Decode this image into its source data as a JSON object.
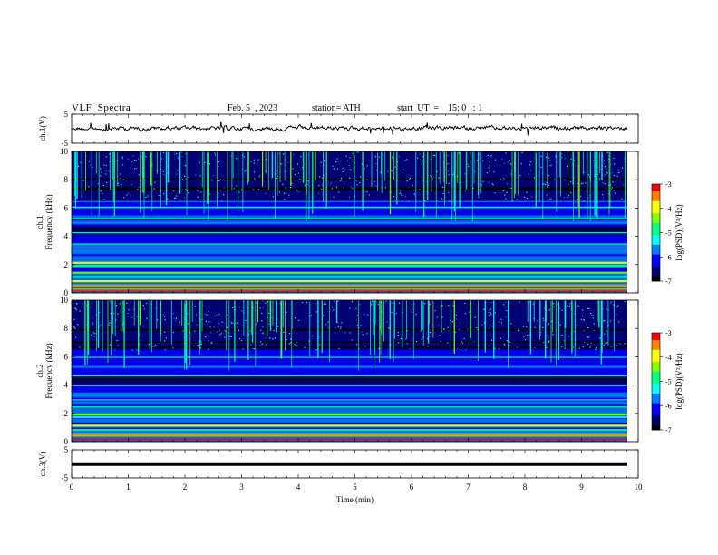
{
  "header": {
    "title": "VLF  Spectra",
    "date": "Feb. 5  , 2023",
    "station": "station= ATH",
    "start": "start  UT  =    15: 0   : 1"
  },
  "chart_data": [
    {
      "type": "line",
      "title": "",
      "ylabel": "ch.1(V)",
      "ylim": [
        -5,
        5
      ],
      "yticks": [
        "5",
        "-5"
      ],
      "xlim": [
        0,
        10
      ],
      "series": [
        {
          "name": "",
          "values": "noisy trace centred near 0 V, roughly -1.5 to 1 V, with brief spikes"
        }
      ]
    },
    {
      "type": "heatmap",
      "title": "",
      "ylabel": "ch.1\nFrequency  (kHz)",
      "ylim": [
        0,
        10
      ],
      "yticks": [
        "0",
        "2",
        "4",
        "6",
        "8",
        "10"
      ],
      "xlim": [
        0,
        10
      ],
      "colorbar": {
        "label": "log(PSD)(V²/Hz)",
        "range": [
          -7,
          -3
        ],
        "ticks": [
          "-3",
          "-4",
          "-5",
          "-6",
          "-7"
        ]
      },
      "bands_khz": [
        0.3,
        0.6,
        0.9,
        1.2,
        1.5,
        2.0,
        2.2,
        3.0,
        3.5,
        4.3,
        5.0,
        5.3,
        6.1,
        6.5
      ]
    },
    {
      "type": "heatmap",
      "title": "",
      "ylabel": "ch.2\nFrequency  (kHz)",
      "ylim": [
        0,
        10
      ],
      "yticks": [
        "0",
        "2",
        "4",
        "6",
        "8",
        "10"
      ],
      "xlim": [
        0,
        10
      ],
      "colorbar": {
        "label": "log(PSD)(V²/Hz)",
        "range": [
          -7,
          -3
        ],
        "ticks": [
          "-3",
          "-4",
          "-5",
          "-6",
          "-7"
        ]
      },
      "bands_khz": [
        0.5,
        0.9,
        1.2,
        1.8,
        2.0,
        2.5,
        3.0,
        3.3,
        4.0,
        4.7,
        5.3,
        6.0
      ]
    },
    {
      "type": "line",
      "title": "",
      "ylabel": "ch.3(V)",
      "ylim": [
        -5,
        5
      ],
      "yticks": [
        "5",
        "-5"
      ],
      "xlim": [
        0,
        10
      ],
      "series": [
        {
          "name": "",
          "values": "constant line at about -1.2 V"
        }
      ]
    }
  ],
  "xaxis": {
    "label": "Time  (min)",
    "ticks": [
      "0",
      "1",
      "2",
      "3",
      "4",
      "5",
      "6",
      "7",
      "8",
      "9",
      "10"
    ]
  },
  "colors": {
    "colormap": [
      "#000000",
      "#00007a",
      "#0000ff",
      "#0080ff",
      "#00ffff",
      "#00ff80",
      "#80ff00",
      "#ffff00",
      "#ff8000",
      "#ff0000",
      "#ffffff"
    ]
  }
}
